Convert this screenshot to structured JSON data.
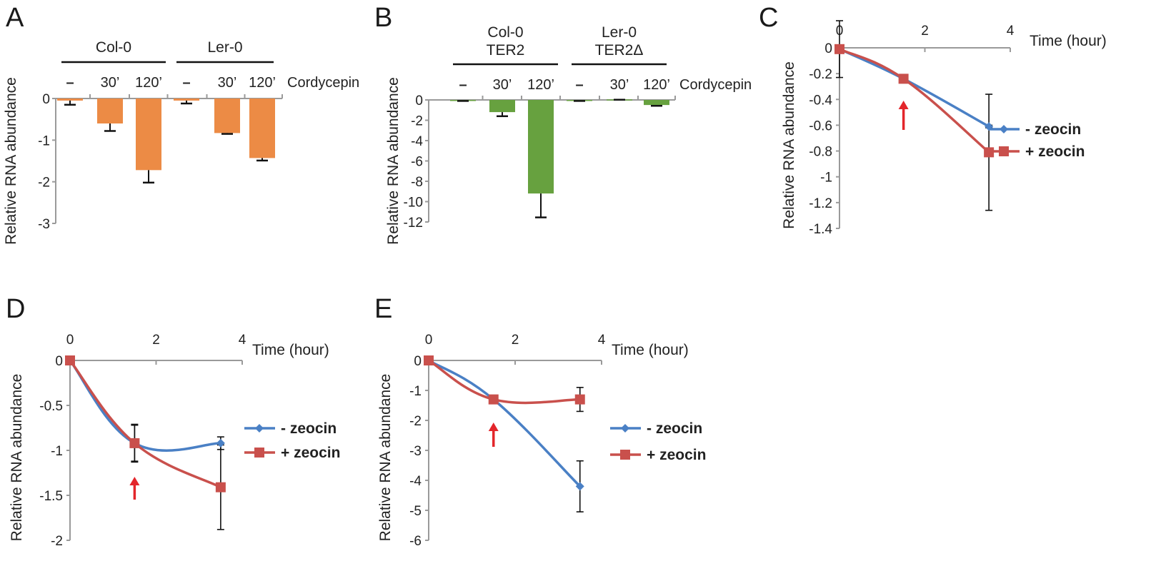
{
  "chart_data": [
    {
      "panel": "A",
      "type": "bar",
      "ylabel": "Relative RNA abundance",
      "treatment_label": "Cordycepin",
      "groups": [
        {
          "label": "Col-0",
          "categories": [
            "–",
            "30’",
            "120’"
          ],
          "values": [
            -0.05,
            -0.6,
            -1.72
          ],
          "errors": [
            0.1,
            0.18,
            0.3
          ]
        },
        {
          "label": "Ler-0",
          "categories": [
            "–",
            "30’",
            "120’"
          ],
          "values": [
            -0.05,
            -0.83,
            -1.43
          ],
          "errors": [
            0.07,
            0.02,
            0.06
          ]
        }
      ],
      "ylim": [
        -3,
        0
      ],
      "yticks": [
        "0",
        "-1",
        "-2",
        "-3"
      ],
      "color": "#ec8b45"
    },
    {
      "panel": "B",
      "type": "bar",
      "ylabel": "Relative RNA abundance",
      "treatment_label": "Cordycepin",
      "groups": [
        {
          "label_lines": [
            "Col-0",
            "TER2"
          ],
          "categories": [
            "–",
            "30’",
            "120’"
          ],
          "values": [
            -0.05,
            -1.2,
            -9.2
          ],
          "errors": [
            0.05,
            0.4,
            2.35
          ]
        },
        {
          "label_lines": [
            "Ler-0",
            "TER2Δ"
          ],
          "categories": [
            "–",
            "30’",
            "120’"
          ],
          "values": [
            -0.05,
            0.05,
            -0.5
          ],
          "errors": [
            0.05,
            0.03,
            0.08
          ]
        }
      ],
      "ylim": [
        -12,
        0
      ],
      "yticks": [
        "0",
        "-2",
        "-4",
        "-6",
        "-8",
        "-10",
        "-12"
      ],
      "color": "#67a13f"
    },
    {
      "panel": "C",
      "type": "line",
      "xlabel": "Time (hour)",
      "ylabel": "Relative RNA abundance",
      "xlim": [
        0,
        4
      ],
      "xticks": [
        "0",
        "2",
        "4"
      ],
      "ylim": [
        -1.4,
        0
      ],
      "yticks": [
        "0",
        "-0.2",
        "-0.4",
        "-0.6",
        "-0.8",
        "-1",
        "-1.2",
        "-1.4"
      ],
      "arrow_x": 1.5,
      "series": [
        {
          "name": "- zeocin",
          "x": [
            0,
            1.5,
            3.5
          ],
          "y": [
            -0.01,
            -0.24,
            -0.61
          ],
          "errors": [
            0.22,
            0.01,
            0.01
          ],
          "color": "#4a80c5",
          "marker": "diamond"
        },
        {
          "name": "+ zeocin",
          "x": [
            0,
            1.5,
            3.5
          ],
          "y": [
            -0.01,
            -0.24,
            -0.81
          ],
          "errors": [
            0.01,
            0.02,
            0.45
          ],
          "color": "#c9504c",
          "marker": "square"
        }
      ]
    },
    {
      "panel": "D",
      "type": "line",
      "xlabel": "Time (hour)",
      "ylabel": "Relative RNA abundance",
      "xlim": [
        0,
        4
      ],
      "xticks": [
        "0",
        "2",
        "4"
      ],
      "ylim": [
        -2,
        0
      ],
      "yticks": [
        "0",
        "-0.5",
        "-1",
        "-1.5",
        "-2"
      ],
      "arrow_x": 1.5,
      "series": [
        {
          "name": "- zeocin",
          "x": [
            0,
            1.5,
            3.5
          ],
          "y": [
            0,
            -0.92,
            -0.92
          ],
          "errors": [
            0,
            0.2,
            0.07
          ],
          "color": "#4a80c5",
          "marker": "diamond"
        },
        {
          "name": "+ zeocin",
          "x": [
            0,
            1.5,
            3.5
          ],
          "y": [
            0,
            -0.92,
            -1.41
          ],
          "errors": [
            0,
            0.21,
            0.47
          ],
          "color": "#c9504c",
          "marker": "square"
        }
      ]
    },
    {
      "panel": "E",
      "type": "line",
      "xlabel": "Time (hour)",
      "ylabel": "Relative RNA abundance",
      "xlim": [
        0,
        4
      ],
      "xticks": [
        "0",
        "2",
        "4"
      ],
      "ylim": [
        -6,
        0
      ],
      "yticks": [
        "0",
        "-1",
        "-2",
        "-3",
        "-4",
        "-5",
        "-6"
      ],
      "arrow_x": 1.5,
      "series": [
        {
          "name": "- zeocin",
          "x": [
            0,
            1.5,
            3.5
          ],
          "y": [
            0,
            -1.3,
            -4.2
          ],
          "errors": [
            0,
            0.05,
            0.85
          ],
          "color": "#4a80c5",
          "marker": "diamond"
        },
        {
          "name": "+ zeocin",
          "x": [
            0,
            1.5,
            3.5
          ],
          "y": [
            0,
            -1.3,
            -1.3
          ],
          "errors": [
            0,
            0.05,
            0.4
          ],
          "color": "#c9504c",
          "marker": "square"
        }
      ]
    }
  ]
}
